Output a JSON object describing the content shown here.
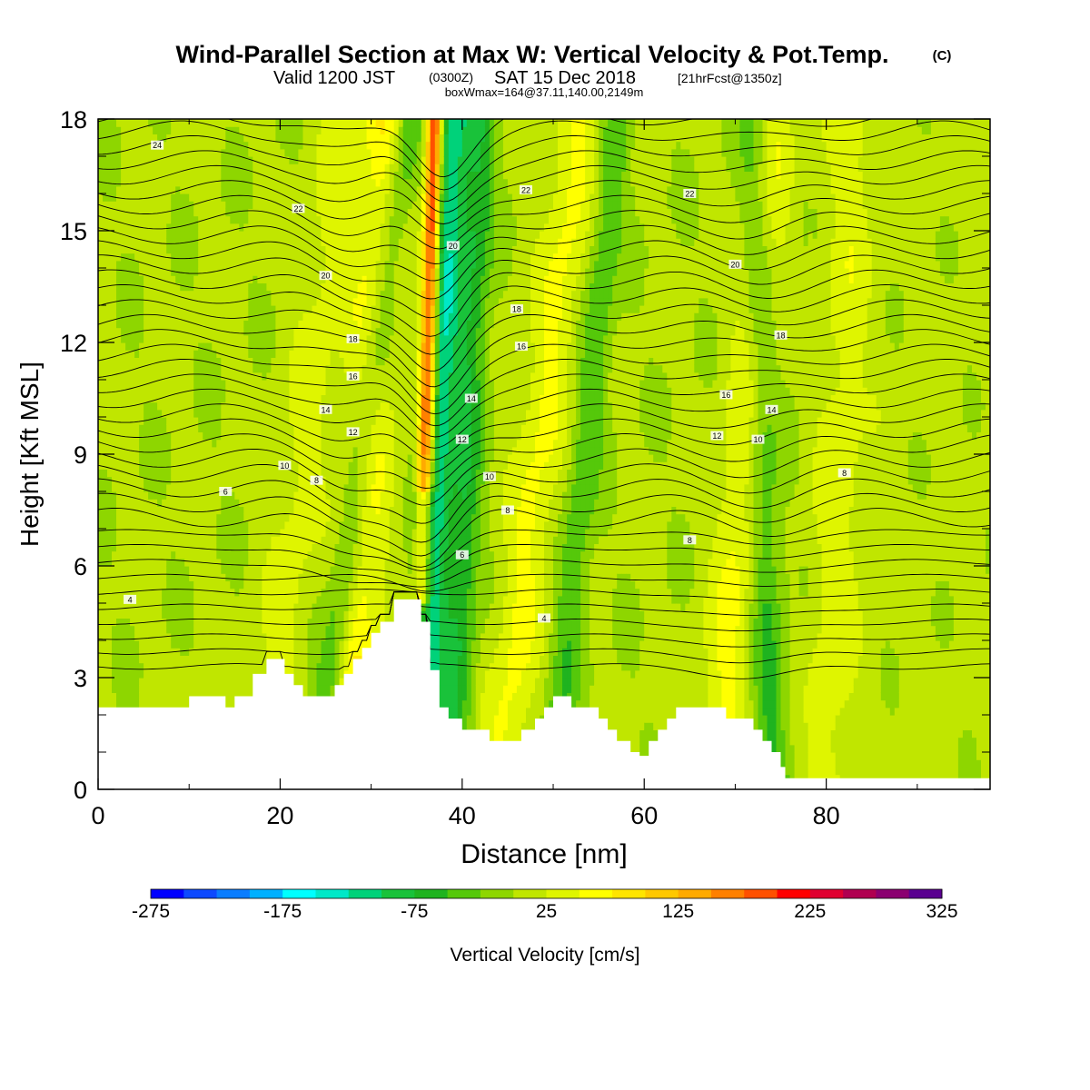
{
  "title": {
    "main": "Wind-Parallel Section at Max W: Vertical Velocity & Pot.Temp.",
    "copyright": "(C)",
    "valid_prefix": "Valid 1200 JST",
    "valid_utc": "(0300Z)",
    "valid_date": "SAT 15 Dec 2018",
    "forecast": "[21hrFcst@1350z]",
    "boxwmax": "boxWmax=164@37.11,140.00,2149m"
  },
  "colorbar": {
    "label": "Vertical Velocity [cm/s]",
    "tick_labels": [
      "-275",
      "-175",
      "-75",
      "25",
      "125",
      "225",
      "325"
    ],
    "colors": [
      "#0000ff",
      "#0d49ff",
      "#0a7dff",
      "#00b0ff",
      "#00ffff",
      "#00e8c8",
      "#00d27a",
      "#19c23a",
      "#1fb31f",
      "#55c80a",
      "#8ed600",
      "#c0e600",
      "#dff500",
      "#ffff00",
      "#ffe500",
      "#ffc800",
      "#ffaa00",
      "#ff8000",
      "#ff5000",
      "#ff0000",
      "#e00030",
      "#b00050",
      "#8b0070",
      "#5a0090"
    ]
  },
  "chart_data": {
    "type": "heatmap",
    "xlabel": "Distance [nm]",
    "ylabel": "Height [Kft MSL]",
    "xlim": [
      0,
      98
    ],
    "ylim": [
      0,
      18
    ],
    "x_ticks": [
      0,
      20,
      40,
      60,
      80
    ],
    "y_ticks": [
      0,
      3,
      6,
      9,
      12,
      15,
      18
    ],
    "fill_variable": "Vertical Velocity [cm/s]",
    "fill_range": [
      -275,
      325
    ],
    "contour_variable": "Potential temperature",
    "contour_labels": [
      "4",
      "6",
      "8",
      "10",
      "12",
      "14",
      "16",
      "18",
      "20",
      "22",
      "24"
    ],
    "terrain_profile": [
      [
        0,
        2.2
      ],
      [
        10,
        2.2
      ],
      [
        10,
        2.5
      ],
      [
        14,
        2.5
      ],
      [
        14,
        2.2
      ],
      [
        15,
        2.2
      ],
      [
        15,
        2.5
      ],
      [
        17,
        2.5
      ],
      [
        17,
        3.1
      ],
      [
        18.5,
        3.1
      ],
      [
        18.5,
        3.5
      ],
      [
        20.5,
        3.5
      ],
      [
        20.5,
        3.1
      ],
      [
        21.5,
        3.1
      ],
      [
        21.5,
        2.8
      ],
      [
        22.5,
        2.8
      ],
      [
        22.5,
        2.5
      ],
      [
        26,
        2.5
      ],
      [
        26,
        2.8
      ],
      [
        27,
        2.8
      ],
      [
        27,
        3.1
      ],
      [
        28,
        3.1
      ],
      [
        28,
        3.5
      ],
      [
        29,
        3.5
      ],
      [
        29,
        3.8
      ],
      [
        30,
        3.8
      ],
      [
        30,
        4.2
      ],
      [
        31,
        4.2
      ],
      [
        31,
        4.5
      ],
      [
        32.5,
        4.5
      ],
      [
        32.5,
        5.1
      ],
      [
        35.5,
        5.1
      ],
      [
        35.5,
        4.5
      ],
      [
        36.5,
        4.5
      ],
      [
        36.5,
        3.2
      ],
      [
        37.5,
        3.2
      ],
      [
        37.5,
        2.2
      ],
      [
        38.5,
        2.2
      ],
      [
        38.5,
        1.9
      ],
      [
        40,
        1.9
      ],
      [
        40,
        1.6
      ],
      [
        43,
        1.6
      ],
      [
        43,
        1.3
      ],
      [
        46.5,
        1.3
      ],
      [
        46.5,
        1.6
      ],
      [
        48,
        1.6
      ],
      [
        48,
        1.9
      ],
      [
        49,
        1.9
      ],
      [
        49,
        2.2
      ],
      [
        50,
        2.2
      ],
      [
        50,
        2.5
      ],
      [
        52,
        2.5
      ],
      [
        52,
        2.2
      ],
      [
        55,
        2.2
      ],
      [
        55,
        1.9
      ],
      [
        56,
        1.9
      ],
      [
        56,
        1.6
      ],
      [
        57,
        1.6
      ],
      [
        57,
        1.3
      ],
      [
        58.5,
        1.3
      ],
      [
        58.5,
        1.0
      ],
      [
        59.5,
        1.0
      ],
      [
        59.5,
        0.9
      ],
      [
        60.5,
        0.9
      ],
      [
        60.5,
        1.3
      ],
      [
        61.5,
        1.3
      ],
      [
        61.5,
        1.6
      ],
      [
        62.5,
        1.6
      ],
      [
        62.5,
        1.9
      ],
      [
        63.5,
        1.9
      ],
      [
        63.5,
        2.2
      ],
      [
        69,
        2.2
      ],
      [
        69,
        1.9
      ],
      [
        72,
        1.9
      ],
      [
        72,
        1.6
      ],
      [
        73,
        1.6
      ],
      [
        73,
        1.3
      ],
      [
        74,
        1.3
      ],
      [
        74,
        1.0
      ],
      [
        75,
        1.0
      ],
      [
        75,
        0.6
      ],
      [
        75.5,
        0.6
      ],
      [
        75.5,
        0.3
      ],
      [
        98,
        0.3
      ]
    ],
    "updraft_bands": [
      {
        "x_top": 27,
        "x_bottom": 18,
        "peak": 30
      },
      {
        "x_top": 32,
        "x_bottom": 27,
        "peak": 75
      },
      {
        "x_top": 53,
        "x_bottom": 44,
        "peak": 50
      },
      {
        "x_top": 74,
        "x_bottom": 68,
        "peak": 50
      },
      {
        "x_top": 83,
        "x_bottom": 80,
        "peak": 30
      }
    ],
    "max_updraft": {
      "x_top": 37,
      "x_bottom": 35,
      "peak": 225
    },
    "downdraft_bands": [
      {
        "x_top": 34,
        "x_bottom": 24,
        "peak": -75
      },
      {
        "x_top": 39,
        "x_bottom": 35.5,
        "peak": -125
      },
      {
        "x_top": 42,
        "x_bottom": 39,
        "peak": -75
      },
      {
        "x_top": 57,
        "x_bottom": 50,
        "peak": -50
      },
      {
        "x_top": 72,
        "x_bottom": 74,
        "peak": -60
      }
    ]
  }
}
